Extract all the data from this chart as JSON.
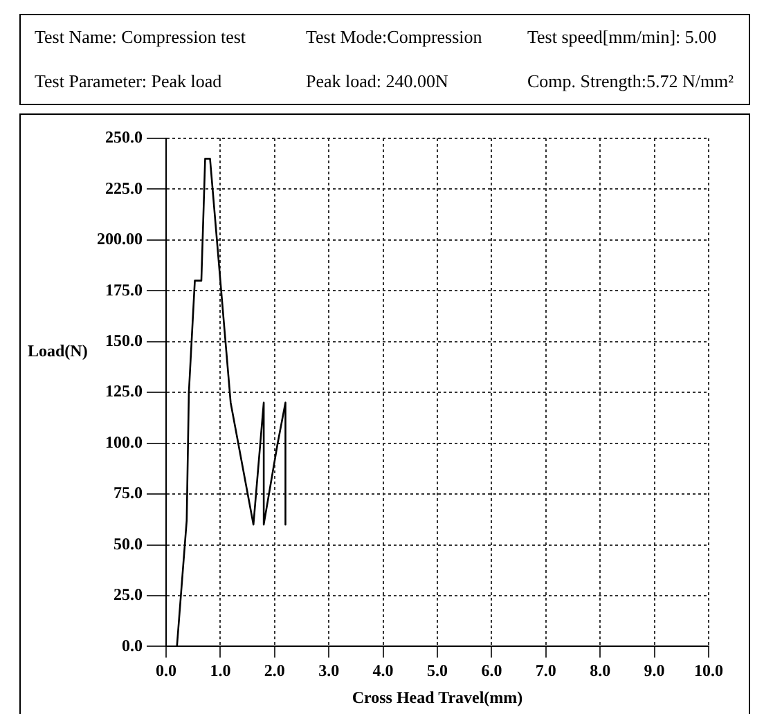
{
  "chart_data": {
    "type": "line",
    "xlabel": "Cross Head Travel(mm)",
    "ylabel": "Load(N)",
    "annotations": [
      "Test Name: Compression test",
      "Test Mode:Compression",
      "Test speed[mm/min]: 5.00",
      "Test Parameter: Peak load",
      "Peak load: 240.00N",
      "Comp. Strength:5.72 N/mm²"
    ],
    "x": [
      0.2,
      0.38,
      0.42,
      0.53,
      0.65,
      0.72,
      0.81,
      1.19,
      1.61,
      1.8,
      1.8,
      2.05,
      2.2,
      2.2
    ],
    "series": [
      {
        "color": "#000000",
        "values": [
          0,
          62,
          125,
          180,
          180,
          240,
          240,
          120,
          60,
          120,
          60,
          99,
          120,
          60
        ]
      }
    ],
    "xlim": [
      0,
      10
    ],
    "xticks": [
      {
        "value": 0,
        "label": "0.0"
      },
      {
        "value": 1,
        "label": "1.0"
      },
      {
        "value": 2,
        "label": "2.0"
      },
      {
        "value": 3,
        "label": "3.0"
      },
      {
        "value": 4,
        "label": "4.0"
      },
      {
        "value": 5,
        "label": "5.0"
      },
      {
        "value": 6,
        "label": "6.0"
      },
      {
        "value": 7,
        "label": "7.0"
      },
      {
        "value": 8,
        "label": "8.0"
      },
      {
        "value": 9,
        "label": "9.0"
      },
      {
        "value": 10,
        "label": "10.0"
      }
    ],
    "ylim": [
      0,
      250
    ],
    "yticks": [
      {
        "value": 0,
        "label": "0.0"
      },
      {
        "value": 25,
        "label": "25.0"
      },
      {
        "value": 50,
        "label": "50.0"
      },
      {
        "value": 75,
        "label": "75.0"
      },
      {
        "value": 100,
        "label": "100.0"
      },
      {
        "value": 125,
        "label": "125.0"
      },
      {
        "value": 150,
        "label": "150.0"
      },
      {
        "value": 175,
        "label": "175.0"
      },
      {
        "value": 200,
        "label": "200.00"
      },
      {
        "value": 225,
        "label": "225.0"
      },
      {
        "value": 250,
        "label": "250.0"
      }
    ],
    "grid": true,
    "legend": false,
    "marker": "none",
    "line_style": "solid"
  }
}
